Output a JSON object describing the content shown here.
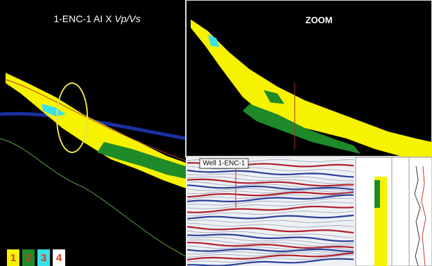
{
  "left_panel": {
    "title": "1-ENC-1 AI X",
    "title_italic": "Vp/Vs"
  },
  "zoom_panel": {
    "title": "ZOOM"
  },
  "well_panel": {
    "label": "Well 1-ENC-1"
  },
  "legend": {
    "items": [
      "1",
      "2",
      "3",
      "4"
    ]
  }
}
